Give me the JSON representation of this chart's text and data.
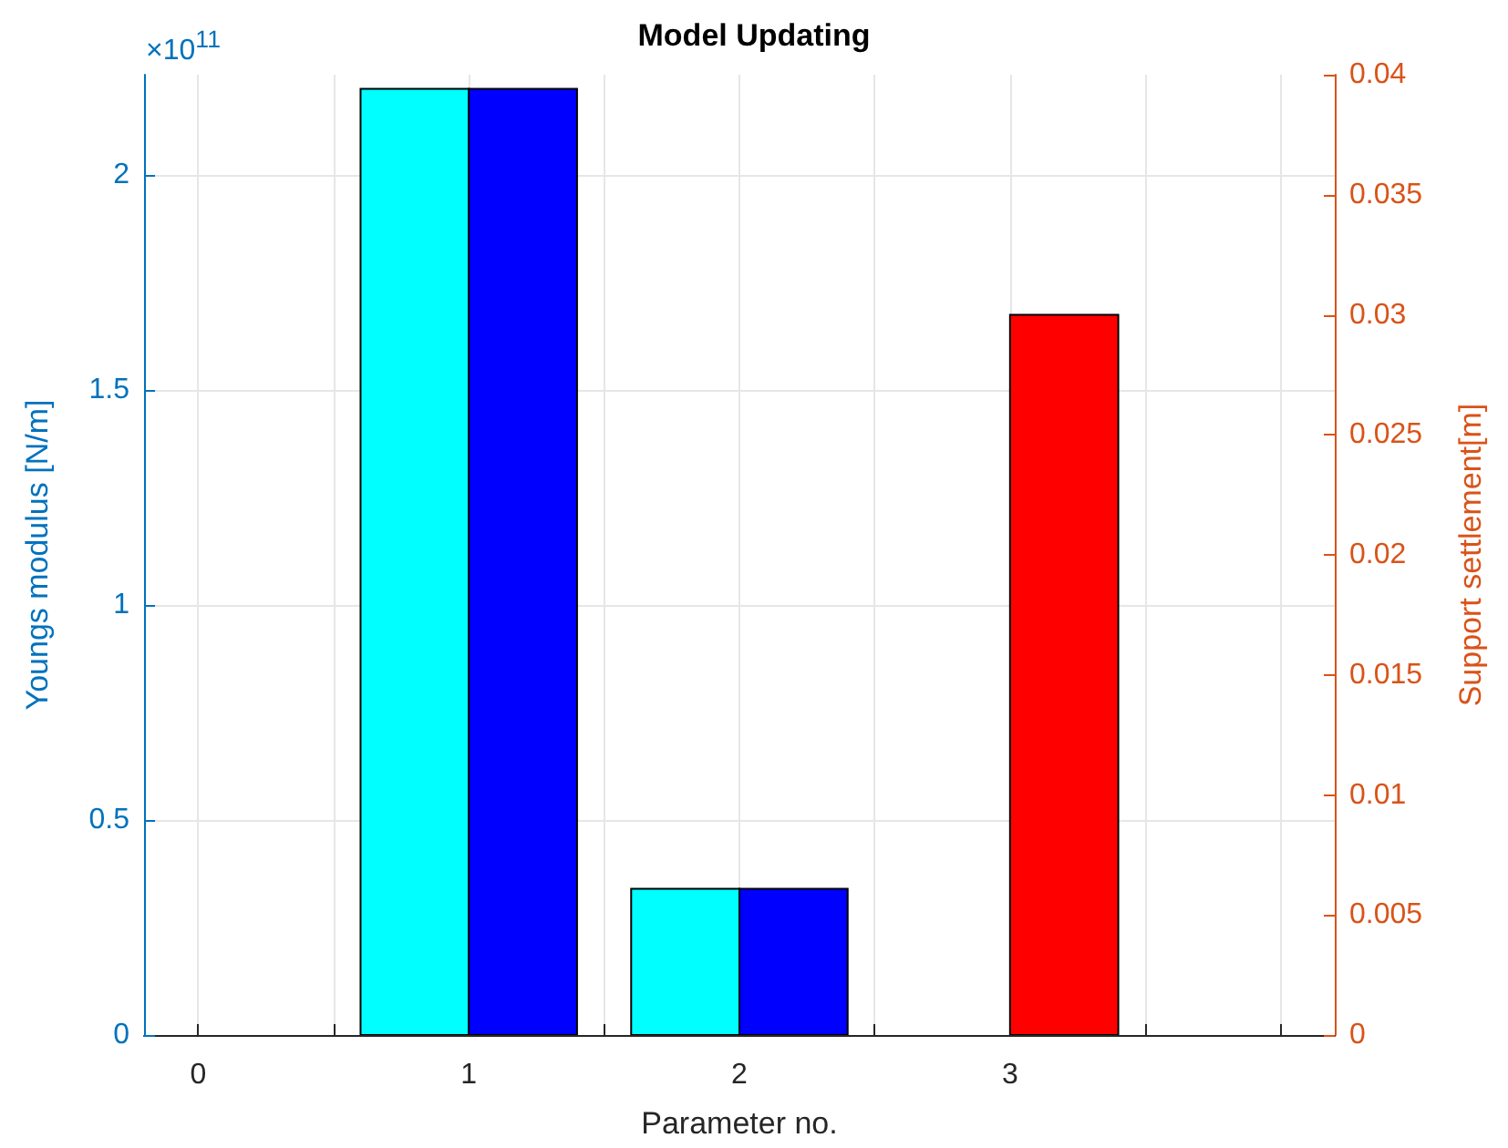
{
  "chart_data": {
    "type": "bar",
    "title": "Model Updating",
    "xlabel": "Parameter no.",
    "ylabel": "Youngs modulus [N/m]",
    "y2label": "Support settlement[m]",
    "annotations": [
      "×10$^{11}$"
    ],
    "x": [
      0,
      1,
      2,
      3,
      4
    ],
    "series": [
      {
        "color": "#00ffff",
        "values": [
          0,
          2.2,
          0.34,
          0,
          0
        ]
      },
      {
        "color": "#0000ff",
        "values": [
          0,
          2.2,
          0.34,
          0,
          0
        ]
      },
      {
        "color": "#ff0000",
        "axis": "y2",
        "values": [
          0,
          0,
          0,
          0.03,
          0
        ]
      }
    ],
    "xlim": [
      -0.2,
      4.2
    ],
    "xticks": [
      0,
      {
        "value": 0.5,
        "label": null
      },
      1,
      {
        "value": 1.5,
        "label": null
      },
      2,
      {
        "value": 2.5,
        "label": null
      },
      3,
      {
        "value": 3.5,
        "label": null
      },
      {
        "value": 4,
        "label": null
      }
    ],
    "ylim": [
      0,
      2.233
    ],
    "yticks": [
      0,
      0.5,
      1,
      1.5,
      2
    ],
    "y2lim": [
      0,
      0.04
    ],
    "y2ticks": [
      0,
      0.005,
      0.01,
      0.015,
      0.02,
      0.025,
      0.03,
      0.035,
      0.04
    ],
    "grid": true
  }
}
